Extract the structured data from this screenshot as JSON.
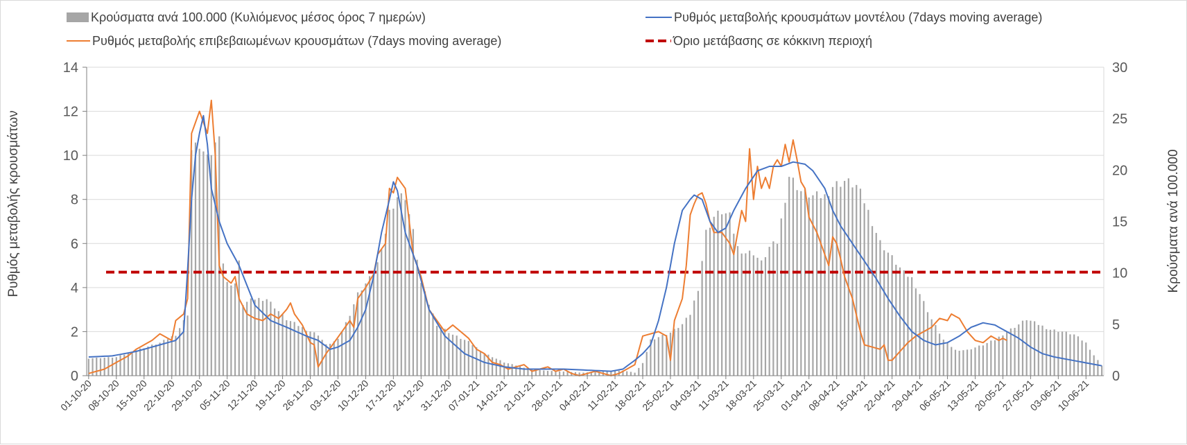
{
  "chart_data": {
    "type": "bar+line",
    "legend": [
      {
        "label": "Κρούσματα ανά 100.000 (Κυλιόμενος μέσος όρος 7 ημερών)",
        "kind": "bar",
        "color": "#a6a6a6"
      },
      {
        "label": "Ρυθμός μεταβολής κρουσμάτων μοντέλου (7days moving average)",
        "kind": "line",
        "color": "#4472c4"
      },
      {
        "label": "Ρυθμός μεταβολής επιβεβαιωμένων κρουσμάτων (7days moving average)",
        "kind": "line",
        "color": "#ed7d31"
      },
      {
        "label": "Όριο μετάβασης σε κόκκινη περιοχή",
        "kind": "dashed",
        "color": "#c00000"
      }
    ],
    "ylabel_left": "Ρυθμός μεταβολής κρουσμάτων",
    "ylabel_right": "Κρούσματα ανά 100.000",
    "ylim_left": [
      0,
      14
    ],
    "yticks_left": [
      "0",
      "2",
      "4",
      "6",
      "8",
      "10",
      "12",
      "14"
    ],
    "ylim_right": [
      0,
      30
    ],
    "yticks_right": [
      "0",
      "5",
      "10",
      "15",
      "20",
      "25",
      "30"
    ],
    "x_start_date": "2020-10-01",
    "num_days": 257,
    "x_tick_labels": [
      "01-10-20",
      "08-10-20",
      "15-10-20",
      "22-10-20",
      "29-10-20",
      "05-11-20",
      "12-11-20",
      "19-11-20",
      "26-11-20",
      "03-12-20",
      "10-12-20",
      "17-12-20",
      "24-12-20",
      "31-12-20",
      "07-01-21",
      "14-01-21",
      "21-01-21",
      "28-01-21",
      "04-02-21",
      "11-02-21",
      "18-02-21",
      "25-02-21",
      "04-03-21",
      "11-03-21",
      "18-03-21",
      "25-03-21",
      "01-04-21",
      "08-04-21",
      "15-04-21",
      "22-04-21",
      "29-04-21",
      "06-05-21",
      "13-05-21",
      "20-05-21",
      "27-05-21",
      "03-06-21",
      "10-06-21"
    ],
    "threshold_left": 4.7,
    "bars_right_keyframes": [
      [
        0,
        1.7
      ],
      [
        7,
        1.8
      ],
      [
        12,
        2.5
      ],
      [
        18,
        3.2
      ],
      [
        22,
        4
      ],
      [
        25,
        6
      ],
      [
        26,
        22
      ],
      [
        28,
        22.5
      ],
      [
        30,
        21
      ],
      [
        32,
        22.5
      ],
      [
        33,
        24
      ],
      [
        34,
        11
      ],
      [
        35,
        9
      ],
      [
        37,
        9
      ],
      [
        38,
        11
      ],
      [
        39,
        7
      ],
      [
        42,
        7.5
      ],
      [
        45,
        7.5
      ],
      [
        50,
        5.5
      ],
      [
        55,
        4.5
      ],
      [
        58,
        4
      ],
      [
        60,
        3
      ],
      [
        63,
        3.5
      ],
      [
        66,
        6
      ],
      [
        68,
        8
      ],
      [
        72,
        10
      ],
      [
        74,
        12
      ],
      [
        76,
        16
      ],
      [
        78,
        17.5
      ],
      [
        80,
        17.5
      ],
      [
        82,
        14
      ],
      [
        84,
        9
      ],
      [
        86,
        7
      ],
      [
        88,
        5
      ],
      [
        92,
        4
      ],
      [
        96,
        3.3
      ],
      [
        100,
        2.2
      ],
      [
        105,
        1.3
      ],
      [
        110,
        0.8
      ],
      [
        115,
        0.5
      ],
      [
        120,
        0.4
      ],
      [
        125,
        0.3
      ],
      [
        130,
        0.4
      ],
      [
        135,
        0.5
      ],
      [
        138,
        0.3
      ],
      [
        140,
        1.2
      ],
      [
        142,
        3.5
      ],
      [
        147,
        4.2
      ],
      [
        150,
        5
      ],
      [
        152,
        6
      ],
      [
        154,
        8.5
      ],
      [
        156,
        14
      ],
      [
        158,
        15.5
      ],
      [
        160,
        16
      ],
      [
        162,
        15.5
      ],
      [
        164,
        12.5
      ],
      [
        166,
        12
      ],
      [
        168,
        12
      ],
      [
        170,
        11
      ],
      [
        172,
        12.5
      ],
      [
        174,
        13
      ],
      [
        177,
        19.5
      ],
      [
        180,
        18
      ],
      [
        183,
        17.5
      ],
      [
        186,
        17.5
      ],
      [
        188,
        18.5
      ],
      [
        191,
        19
      ],
      [
        194,
        18.5
      ],
      [
        196,
        17
      ],
      [
        198,
        15
      ],
      [
        200,
        13
      ],
      [
        202,
        12
      ],
      [
        204,
        11
      ],
      [
        206,
        10
      ],
      [
        208,
        9.5
      ],
      [
        210,
        8
      ],
      [
        213,
        5.5
      ],
      [
        216,
        3.5
      ],
      [
        219,
        2.5
      ],
      [
        222,
        2.5
      ],
      [
        226,
        3
      ],
      [
        229,
        3.5
      ],
      [
        232,
        4.3
      ],
      [
        235,
        5
      ],
      [
        237,
        5.5
      ],
      [
        240,
        5
      ],
      [
        243,
        4.5
      ],
      [
        246,
        4.3
      ],
      [
        249,
        4
      ],
      [
        252,
        3.2
      ],
      [
        254,
        2
      ],
      [
        256,
        1
      ]
    ],
    "series_model_keyframes": [
      [
        0,
        0.85
      ],
      [
        6,
        0.9
      ],
      [
        12,
        1.1
      ],
      [
        18,
        1.4
      ],
      [
        22,
        1.6
      ],
      [
        24,
        2
      ],
      [
        25,
        4.8
      ],
      [
        26,
        8
      ],
      [
        27,
        10
      ],
      [
        28,
        11
      ],
      [
        29,
        11.8
      ],
      [
        30,
        10.5
      ],
      [
        31,
        8.5
      ],
      [
        33,
        7
      ],
      [
        35,
        6
      ],
      [
        38,
        5
      ],
      [
        42,
        3.2
      ],
      [
        46,
        2.5
      ],
      [
        50,
        2.2
      ],
      [
        55,
        1.8
      ],
      [
        58,
        1.6
      ],
      [
        61,
        1.2
      ],
      [
        63,
        1.3
      ],
      [
        66,
        1.6
      ],
      [
        68,
        2.2
      ],
      [
        70,
        3
      ],
      [
        72,
        4.5
      ],
      [
        74,
        6.5
      ],
      [
        76,
        8
      ],
      [
        77,
        8.8
      ],
      [
        78,
        8.4
      ],
      [
        80,
        6.5
      ],
      [
        83,
        5
      ],
      [
        86,
        3
      ],
      [
        90,
        1.8
      ],
      [
        95,
        1
      ],
      [
        100,
        0.6
      ],
      [
        105,
        0.4
      ],
      [
        110,
        0.3
      ],
      [
        115,
        0.3
      ],
      [
        120,
        0.3
      ],
      [
        126,
        0.25
      ],
      [
        132,
        0.2
      ],
      [
        135,
        0.3
      ],
      [
        138,
        0.7
      ],
      [
        140,
        1
      ],
      [
        142,
        1.4
      ],
      [
        144,
        2.5
      ],
      [
        146,
        4
      ],
      [
        148,
        6
      ],
      [
        150,
        7.5
      ],
      [
        152,
        8
      ],
      [
        153,
        8.2
      ],
      [
        155,
        8
      ],
      [
        157,
        7
      ],
      [
        159,
        6.5
      ],
      [
        161,
        6.7
      ],
      [
        163,
        7.5
      ],
      [
        166,
        8.5
      ],
      [
        169,
        9.3
      ],
      [
        172,
        9.5
      ],
      [
        175,
        9.5
      ],
      [
        178,
        9.7
      ],
      [
        181,
        9.6
      ],
      [
        183,
        9.3
      ],
      [
        186,
        8.5
      ],
      [
        188,
        7.5
      ],
      [
        190,
        6.8
      ],
      [
        193,
        6
      ],
      [
        196,
        5.2
      ],
      [
        199,
        4.4
      ],
      [
        202,
        3.5
      ],
      [
        205,
        2.7
      ],
      [
        208,
        2
      ],
      [
        211,
        1.6
      ],
      [
        214,
        1.4
      ],
      [
        217,
        1.5
      ],
      [
        220,
        1.8
      ],
      [
        223,
        2.2
      ],
      [
        226,
        2.4
      ],
      [
        229,
        2.3
      ],
      [
        232,
        2
      ],
      [
        235,
        1.7
      ],
      [
        238,
        1.3
      ],
      [
        241,
        1
      ],
      [
        244,
        0.85
      ],
      [
        247,
        0.75
      ],
      [
        250,
        0.65
      ],
      [
        253,
        0.55
      ],
      [
        256,
        0.45
      ]
    ],
    "series_confirmed_keyframes": [
      [
        0,
        0.1
      ],
      [
        2,
        0.2
      ],
      [
        4,
        0.3
      ],
      [
        7,
        0.6
      ],
      [
        10,
        0.9
      ],
      [
        12,
        1.2
      ],
      [
        14,
        1.4
      ],
      [
        16,
        1.6
      ],
      [
        18,
        1.9
      ],
      [
        21,
        1.6
      ],
      [
        22,
        2.5
      ],
      [
        24,
        2.8
      ],
      [
        25,
        3.5
      ],
      [
        26,
        11
      ],
      [
        27,
        11.5
      ],
      [
        28,
        12
      ],
      [
        29,
        11.5
      ],
      [
        30,
        11
      ],
      [
        31,
        12.5
      ],
      [
        32,
        10
      ],
      [
        33,
        5
      ],
      [
        34,
        4.5
      ],
      [
        36,
        4.2
      ],
      [
        37,
        4.5
      ],
      [
        38,
        3.5
      ],
      [
        40,
        2.8
      ],
      [
        42,
        2.6
      ],
      [
        44,
        2.5
      ],
      [
        46,
        2.8
      ],
      [
        48,
        2.6
      ],
      [
        50,
        3
      ],
      [
        51,
        3.3
      ],
      [
        52,
        2.8
      ],
      [
        54,
        2.3
      ],
      [
        56,
        1.5
      ],
      [
        57,
        1.4
      ],
      [
        58,
        0.4
      ],
      [
        60,
        1
      ],
      [
        62,
        1.5
      ],
      [
        64,
        2
      ],
      [
        66,
        2.5
      ],
      [
        67,
        2.2
      ],
      [
        68,
        3.5
      ],
      [
        70,
        4
      ],
      [
        72,
        4.6
      ],
      [
        73,
        5.5
      ],
      [
        75,
        6
      ],
      [
        76,
        8.5
      ],
      [
        77,
        8.3
      ],
      [
        78,
        9
      ],
      [
        80,
        8.5
      ],
      [
        81,
        7
      ],
      [
        82,
        5.5
      ],
      [
        84,
        4.5
      ],
      [
        86,
        3
      ],
      [
        88,
        2.5
      ],
      [
        90,
        2
      ],
      [
        92,
        2.3
      ],
      [
        94,
        2
      ],
      [
        96,
        1.7
      ],
      [
        98,
        1.2
      ],
      [
        100,
        1
      ],
      [
        102,
        0.6
      ],
      [
        104,
        0.5
      ],
      [
        106,
        0.3
      ],
      [
        108,
        0.4
      ],
      [
        110,
        0.5
      ],
      [
        112,
        0.2
      ],
      [
        114,
        0.3
      ],
      [
        116,
        0.4
      ],
      [
        118,
        0.2
      ],
      [
        120,
        0.3
      ],
      [
        122,
        0.1
      ],
      [
        124,
        0
      ],
      [
        126,
        0.1
      ],
      [
        128,
        0.2
      ],
      [
        130,
        0.1
      ],
      [
        132,
        0
      ],
      [
        134,
        0.1
      ],
      [
        136,
        0.3
      ],
      [
        138,
        0.5
      ],
      [
        140,
        1.8
      ],
      [
        142,
        1.9
      ],
      [
        144,
        2
      ],
      [
        146,
        1.8
      ],
      [
        147,
        0.7
      ],
      [
        148,
        2.5
      ],
      [
        150,
        3.5
      ],
      [
        151,
        5
      ],
      [
        152,
        7.3
      ],
      [
        153,
        7.8
      ],
      [
        154,
        8.2
      ],
      [
        155,
        8.3
      ],
      [
        156,
        7.8
      ],
      [
        157,
        7
      ],
      [
        158,
        6.5
      ],
      [
        160,
        6.5
      ],
      [
        162,
        6
      ],
      [
        163,
        5.5
      ],
      [
        165,
        7.5
      ],
      [
        166,
        7
      ],
      [
        167,
        10.3
      ],
      [
        168,
        8
      ],
      [
        169,
        9.5
      ],
      [
        170,
        8.5
      ],
      [
        171,
        9
      ],
      [
        172,
        8.5
      ],
      [
        173,
        9.5
      ],
      [
        174,
        9.8
      ],
      [
        175,
        9.5
      ],
      [
        176,
        10.5
      ],
      [
        177,
        9.7
      ],
      [
        178,
        10.7
      ],
      [
        179,
        9.8
      ],
      [
        180,
        8.8
      ],
      [
        181,
        8.5
      ],
      [
        182,
        7.2
      ],
      [
        184,
        6.5
      ],
      [
        186,
        5.5
      ],
      [
        187,
        5
      ],
      [
        188,
        6.3
      ],
      [
        189,
        6
      ],
      [
        190,
        5.3
      ],
      [
        191,
        4.5
      ],
      [
        193,
        3.5
      ],
      [
        195,
        2
      ],
      [
        196,
        1.4
      ],
      [
        198,
        1.3
      ],
      [
        200,
        1.2
      ],
      [
        201,
        1.4
      ],
      [
        202,
        0.7
      ],
      [
        203,
        0.7
      ],
      [
        205,
        1.1
      ],
      [
        207,
        1.5
      ],
      [
        209,
        1.8
      ],
      [
        211,
        2
      ],
      [
        213,
        2.2
      ],
      [
        215,
        2.6
      ],
      [
        217,
        2.5
      ],
      [
        218,
        2.8
      ],
      [
        220,
        2.6
      ],
      [
        222,
        2
      ],
      [
        224,
        1.6
      ],
      [
        226,
        1.5
      ],
      [
        228,
        1.8
      ],
      [
        230,
        1.6
      ],
      [
        231,
        1.7
      ],
      [
        232,
        1.6
      ]
    ]
  }
}
